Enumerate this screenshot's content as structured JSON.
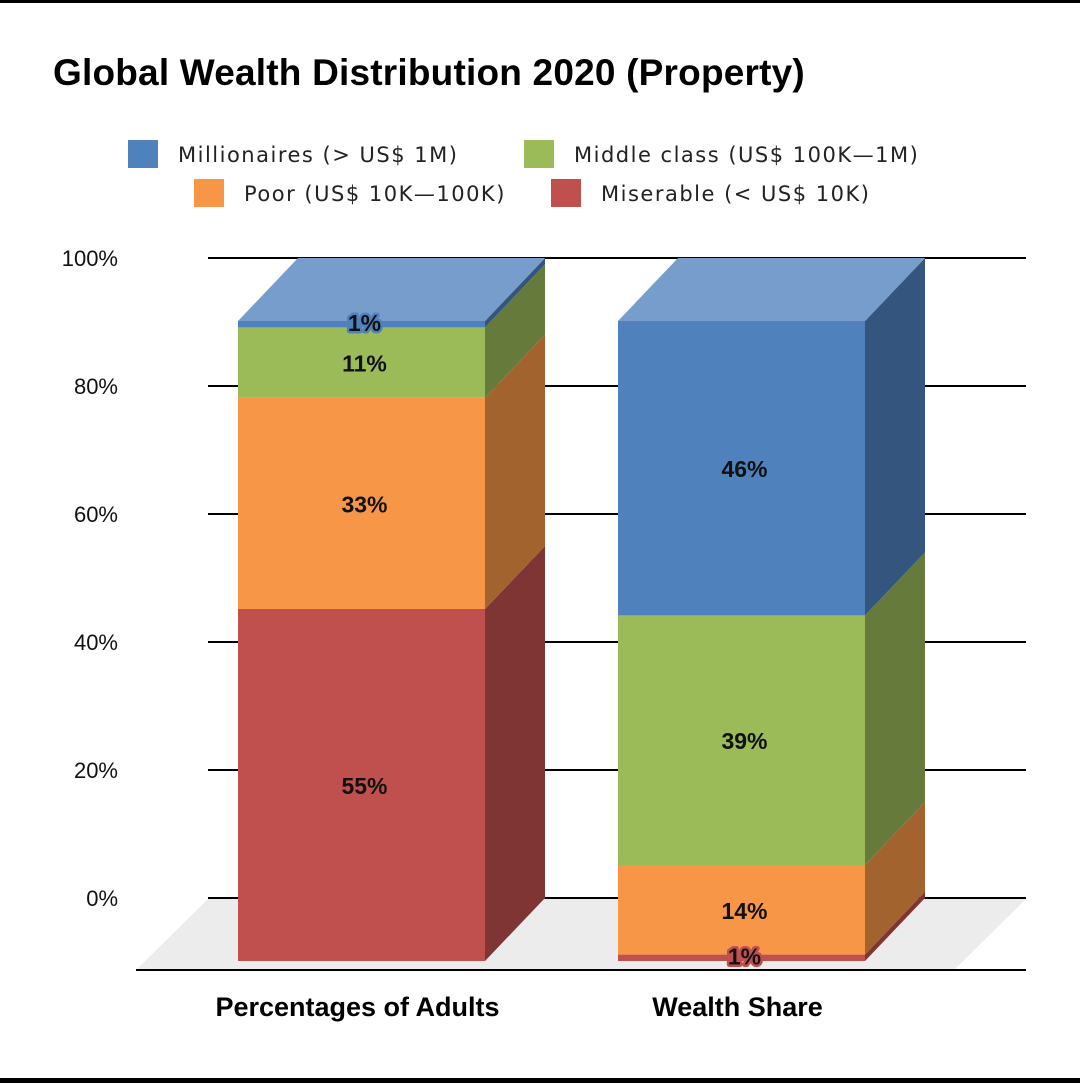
{
  "chart_data": {
    "type": "bar",
    "title": "Global Wealth Distribution 2020 (Property)",
    "stacked": true,
    "style": "3d",
    "categories": [
      "Percentages of Adults",
      "Wealth Share"
    ],
    "series": [
      {
        "name": "Miserable (< US$ 10K)",
        "color": "#c0504d",
        "values": [
          55,
          1
        ]
      },
      {
        "name": "Poor (US$ 10K—100K)",
        "color": "#f79646",
        "values": [
          33,
          14
        ]
      },
      {
        "name": "Middle class (US$ 100K—1M)",
        "color": "#9bbb59",
        "values": [
          11,
          39
        ]
      },
      {
        "name": "Millionaires (> US$ 1M)",
        "color": "#4f81bd",
        "values": [
          1,
          46
        ]
      }
    ],
    "data_labels": [
      [
        "55%",
        "33%",
        "11%",
        "1%"
      ],
      [
        "1%",
        "14%",
        "39%",
        "46%"
      ]
    ],
    "yticks": [
      "0%",
      "20%",
      "40%",
      "60%",
      "80%",
      "100%"
    ],
    "ylim": [
      0,
      100
    ],
    "grid": true,
    "legend_position": "top",
    "legend_order": [
      "Millionaires (> US$ 1M)",
      "Middle class (US$ 100K—1M)",
      "Poor (US$ 10K—100K)",
      "Miserable (< US$ 10K)"
    ]
  }
}
